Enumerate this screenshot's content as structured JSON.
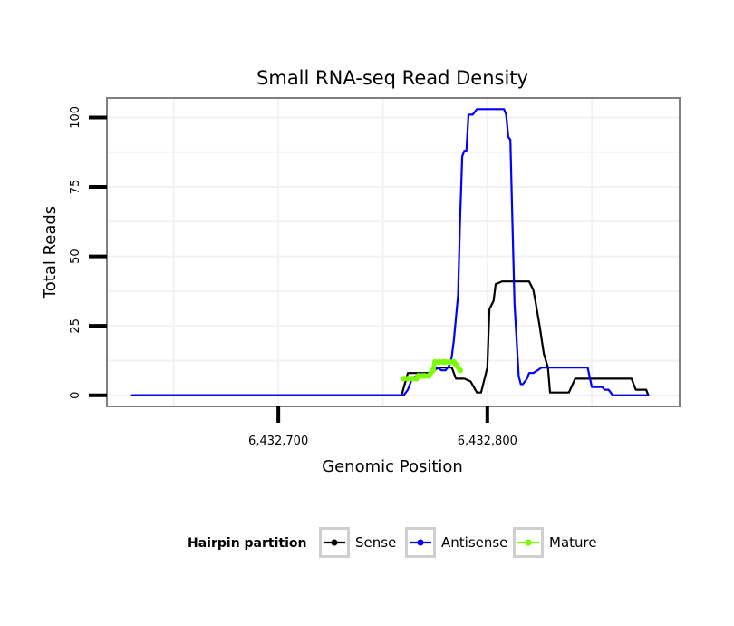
{
  "chart_data": {
    "type": "line",
    "title": "Small RNA-seq Read Density",
    "xlabel": "Genomic Position",
    "ylabel": "Total Reads",
    "xlim": [
      6432618,
      6432892
    ],
    "ylim": [
      -4,
      107
    ],
    "x_ticks": [
      {
        "value": 6432700,
        "label": "6,432,700"
      },
      {
        "value": 6432800,
        "label": "6,432,800"
      }
    ],
    "y_ticks": [
      {
        "value": 0,
        "label": "0"
      },
      {
        "value": 25,
        "label": "25"
      },
      {
        "value": 50,
        "label": "50"
      },
      {
        "value": 75,
        "label": "75"
      },
      {
        "value": 100,
        "label": "100"
      }
    ],
    "grid": true,
    "legend": {
      "title": "Hairpin partition",
      "position": "bottom"
    },
    "series": [
      {
        "name": "Sense",
        "color": "#000000",
        "x": [
          6432630,
          6432759,
          6432762,
          6432766,
          6432772,
          6432774,
          6432777,
          6432780,
          6432783,
          6432785,
          6432789,
          6432792,
          6432795,
          6432797,
          6432798,
          6432800,
          6432801,
          6432803,
          6432804,
          6432807,
          6432820,
          6432822,
          6432823,
          6432825,
          6432827,
          6432829,
          6432830,
          6432832,
          6432833,
          6432839,
          6432842,
          6432846,
          6432869,
          6432871,
          6432876,
          6432877
        ],
        "values": [
          0,
          0,
          8,
          8,
          8,
          9,
          10,
          10,
          10,
          6,
          6,
          5,
          1,
          1,
          4,
          10,
          31,
          34,
          40,
          41,
          41,
          38,
          34,
          25,
          15,
          10,
          1,
          1,
          1,
          1,
          6,
          6,
          6,
          2,
          2,
          0
        ]
      },
      {
        "name": "Antisense",
        "color": "#0000ff",
        "x": [
          6432630,
          6432760,
          6432762,
          6432764,
          6432766,
          6432768,
          6432770,
          6432772,
          6432774,
          6432776,
          6432778,
          6432780,
          6432781,
          6432782,
          6432783,
          6432784,
          6432785,
          6432786,
          6432787,
          6432788,
          6432789,
          6432790,
          6432791,
          6432792,
          6432793,
          6432795,
          6432797,
          6432799,
          6432800,
          6432801,
          6432808,
          6432809,
          6432810,
          6432811,
          6432812,
          6432813,
          6432814,
          6432815,
          6432816,
          6432817,
          6432818,
          6432819,
          6432820,
          6432822,
          6432824,
          6432826,
          6432828,
          6432830,
          6432848,
          6432850,
          6432852,
          6432855,
          6432856,
          6432858,
          6432859,
          6432860,
          6432862,
          6432864,
          6432866,
          6432870,
          6432871,
          6432875,
          6432877
        ],
        "values": [
          0,
          0,
          2,
          6,
          7,
          8,
          7,
          8,
          9,
          10,
          9,
          9,
          10,
          11,
          14,
          20,
          28,
          36,
          64,
          86,
          88,
          88,
          101,
          101,
          101,
          103,
          103,
          103,
          103,
          103,
          103,
          101,
          93,
          92,
          62,
          33,
          20,
          7,
          4,
          4,
          5,
          6,
          8,
          8,
          9,
          10,
          10,
          10,
          10,
          3,
          3,
          3,
          2,
          2,
          1,
          0,
          0,
          0,
          0,
          0,
          0,
          0,
          0
        ]
      },
      {
        "name": "Mature",
        "color": "#7cfc00",
        "x": [
          6432760,
          6432762,
          6432764,
          6432766,
          6432767,
          6432769,
          6432770,
          6432772,
          6432774,
          6432775,
          6432777,
          6432779,
          6432780,
          6432782,
          6432784,
          6432785,
          6432787
        ],
        "values": [
          6,
          6,
          6,
          6,
          7,
          7,
          7,
          7,
          9,
          12,
          12,
          12,
          12,
          12,
          12,
          11,
          9
        ]
      }
    ]
  }
}
